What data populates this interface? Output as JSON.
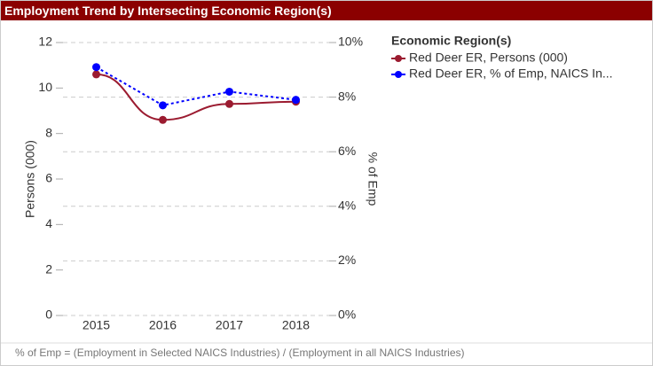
{
  "chart_data": {
    "type": "line",
    "title": "Employment Trend by Intersecting Economic Region(s)",
    "legend_title": "Economic Region(s)",
    "x_label": "Persons (000)",
    "y_label": "Persons (000)",
    "y2_label": "% of Emp",
    "footnote": "% of Emp = (Employment in Selected NAICS Industries) / (Employment in all NAICS Industries)",
    "categories": [
      "2015",
      "2016",
      "2017",
      "2018"
    ],
    "series": [
      {
        "name": "Red Deer ER, Persons (000)",
        "color": "#9b1b30",
        "dash": false,
        "smooth": true,
        "values": [
          10.6,
          8.6,
          9.3,
          9.4
        ]
      },
      {
        "name": "Red Deer ER, % of Emp, NAICS In...",
        "color": "#0000ff",
        "dash": true,
        "smooth": false,
        "axis": "y2",
        "values": [
          9.1,
          7.7,
          8.2,
          7.9
        ]
      }
    ],
    "ylim": [
      0,
      12
    ],
    "yticks": [
      0,
      2,
      4,
      6,
      8,
      10,
      12
    ],
    "y2lim": [
      0,
      10
    ],
    "y2ticks": [
      {
        "value": 0,
        "label": "0%"
      },
      {
        "value": 2,
        "label": "2%"
      },
      {
        "value": 4,
        "label": "4%"
      },
      {
        "value": 6,
        "label": "6%"
      },
      {
        "value": 8,
        "label": "8%"
      },
      {
        "value": 10,
        "label": "10%"
      }
    ],
    "grid": true,
    "legend": "top-right"
  }
}
